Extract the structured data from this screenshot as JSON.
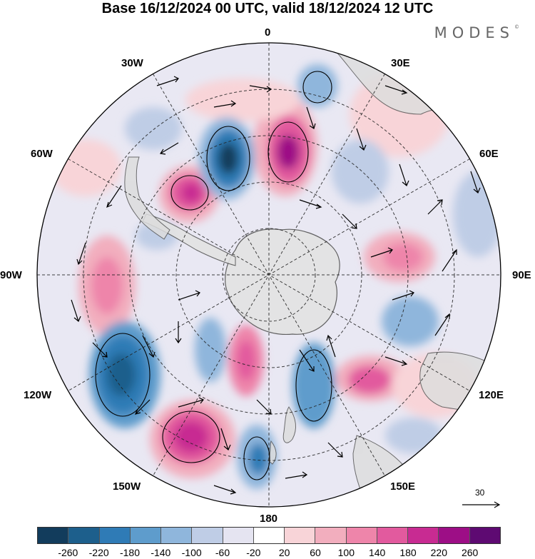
{
  "title": "Base 16/12/2024 00 UTC, valid 18/12/2024 12 UTC",
  "brand": "MODES",
  "brand_mark": "©",
  "lon_labels": {
    "top": "0",
    "tr": "30E",
    "rtop": "60E",
    "right": "90E",
    "rbottom": "120E",
    "br": "150E",
    "bottom": "180",
    "bl": "150W",
    "lbottom": "120W",
    "left": "90W",
    "ltop": "60W",
    "tl": "30W"
  },
  "vector_reference": "30",
  "colorbar": {
    "colors": [
      "#123c5c",
      "#1d5f8c",
      "#2f7bb6",
      "#5e9ccc",
      "#8fb6dc",
      "#bfcde6",
      "#e5e4f1",
      "#ffffff",
      "#f8d4d8",
      "#f2aebe",
      "#ee85aa",
      "#e25a9e",
      "#c82b92",
      "#9d0e86",
      "#5e0a72"
    ],
    "labels": [
      "-260",
      "-220",
      "-180",
      "-140",
      "-100",
      "-60",
      "-20",
      "20",
      "60",
      "100",
      "140",
      "180",
      "220",
      "260"
    ]
  },
  "colors": {
    "coast": "#555555",
    "land": "#e3e3e3",
    "grid": "#222222"
  }
}
